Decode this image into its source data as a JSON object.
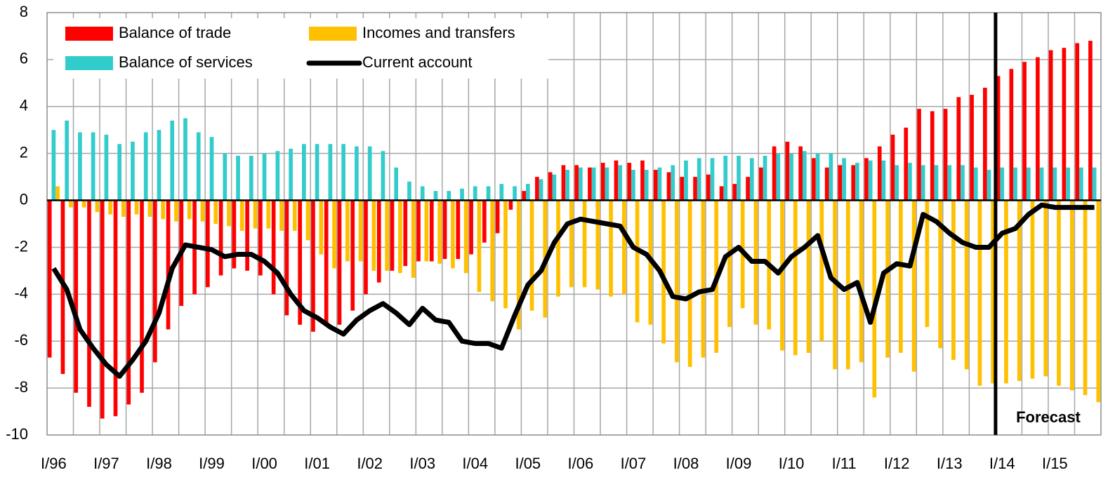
{
  "chart_data": {
    "type": "bar",
    "categories": [
      "I/96",
      null,
      null,
      null,
      "I/97",
      null,
      null,
      null,
      "I/98",
      null,
      null,
      null,
      "I/99",
      null,
      null,
      null,
      "I/00",
      null,
      null,
      null,
      "I/01",
      null,
      null,
      null,
      "I/02",
      null,
      null,
      null,
      "I/03",
      null,
      null,
      null,
      "I/04",
      null,
      null,
      null,
      "I/05",
      null,
      null,
      null,
      "I/06",
      null,
      null,
      null,
      "I/07",
      null,
      null,
      null,
      "I/08",
      null,
      null,
      null,
      "I/09",
      null,
      null,
      null,
      "I/10",
      null,
      null,
      null,
      "I/11",
      null,
      null,
      null,
      "I/12",
      null,
      null,
      null,
      "I/13",
      null,
      null,
      null,
      "I/14",
      null,
      null,
      null,
      "I/15",
      null,
      null,
      null
    ],
    "series": [
      {
        "name": "Balance of trade",
        "type": "bar",
        "color": "#ff0000",
        "values": [
          -6.7,
          -7.4,
          -8.2,
          -8.8,
          -9.3,
          -9.2,
          -8.7,
          -8.2,
          -6.9,
          -5.5,
          -4.5,
          -4.0,
          -3.7,
          -3.2,
          -2.9,
          -3.0,
          -3.2,
          -4.0,
          -4.9,
          -5.3,
          -5.6,
          -5.3,
          -5.3,
          -4.7,
          -4.0,
          -3.5,
          -3.0,
          -2.8,
          -2.6,
          -2.6,
          -2.5,
          -2.5,
          -2.3,
          -1.8,
          -1.4,
          -0.4,
          0.4,
          1.0,
          1.2,
          1.5,
          1.5,
          1.4,
          1.6,
          1.7,
          1.6,
          1.7,
          1.3,
          1.2,
          1.0,
          1.0,
          1.1,
          0.6,
          0.7,
          1.0,
          1.4,
          2.3,
          2.5,
          2.3,
          1.8,
          1.4,
          1.5,
          1.5,
          1.8,
          2.3,
          2.8,
          3.1,
          3.9,
          3.8,
          3.9,
          4.4,
          4.5,
          4.8,
          5.3,
          5.6,
          5.9,
          6.1,
          6.4,
          6.5,
          6.7,
          6.8
        ]
      },
      {
        "name": "Balance of services",
        "type": "bar",
        "color": "#33cccc",
        "values": [
          3.0,
          3.4,
          2.9,
          2.9,
          2.8,
          2.4,
          2.5,
          2.9,
          3.0,
          3.4,
          3.5,
          2.9,
          2.7,
          2.0,
          1.9,
          1.9,
          2.0,
          2.1,
          2.2,
          2.4,
          2.4,
          2.4,
          2.4,
          2.3,
          2.3,
          2.1,
          1.4,
          0.8,
          0.6,
          0.4,
          0.4,
          0.5,
          0.6,
          0.6,
          0.7,
          0.6,
          0.7,
          0.9,
          1.1,
          1.3,
          1.4,
          1.4,
          1.4,
          1.5,
          1.3,
          1.3,
          1.4,
          1.5,
          1.7,
          1.8,
          1.8,
          1.9,
          1.9,
          1.8,
          1.9,
          2.0,
          2.0,
          2.1,
          2.0,
          2.0,
          1.8,
          1.6,
          1.7,
          1.7,
          1.5,
          1.6,
          1.5,
          1.5,
          1.5,
          1.5,
          1.4,
          1.3,
          1.4,
          1.4,
          1.4,
          1.4,
          1.4,
          1.4,
          1.4,
          1.4
        ]
      },
      {
        "name": "Incomes and transfers",
        "type": "bar",
        "color": "#ffc000",
        "values": [
          0.6,
          -0.3,
          -0.3,
          -0.5,
          -0.6,
          -0.7,
          -0.6,
          -0.7,
          -0.8,
          -0.9,
          -0.8,
          -0.9,
          -1.0,
          -1.1,
          -1.3,
          -1.2,
          -1.2,
          -1.3,
          -1.3,
          -1.7,
          -2.3,
          -2.9,
          -2.6,
          -2.6,
          -3.0,
          -3.0,
          -3.1,
          -3.3,
          -2.6,
          -2.7,
          -2.9,
          -3.1,
          -3.9,
          -4.3,
          -4.6,
          -5.5,
          -4.7,
          -5.0,
          -4.1,
          -3.7,
          -3.7,
          -3.8,
          -4.1,
          -4.0,
          -5.2,
          -5.3,
          -6.1,
          -6.9,
          -7.1,
          -6.7,
          -6.5,
          -5.4,
          -4.6,
          -5.3,
          -5.5,
          -6.4,
          -6.6,
          -6.5,
          -6.0,
          -7.2,
          -7.2,
          -6.9,
          -8.4,
          -6.7,
          -6.5,
          -7.3,
          -5.4,
          -6.3,
          -6.8,
          -7.2,
          -7.9,
          -7.8,
          -7.8,
          -7.7,
          -7.6,
          -7.5,
          -7.9,
          -8.1,
          -8.3,
          -8.6
        ]
      },
      {
        "name": "Current account",
        "type": "line",
        "color": "#000000",
        "values": [
          -2.9,
          -3.8,
          -5.5,
          -6.3,
          -7.0,
          -7.5,
          -6.8,
          -6.0,
          -4.8,
          -2.9,
          -1.9,
          -2.0,
          -2.1,
          -2.4,
          -2.3,
          -2.3,
          -2.6,
          -3.1,
          -4.0,
          -4.7,
          -5.0,
          -5.4,
          -5.7,
          -5.1,
          -4.7,
          -4.4,
          -4.8,
          -5.3,
          -4.6,
          -5.1,
          -5.2,
          -6.0,
          -6.1,
          -6.1,
          -6.3,
          -4.9,
          -3.6,
          -3.0,
          -1.8,
          -1.0,
          -0.8,
          -0.9,
          -1.0,
          -1.1,
          -2.0,
          -2.3,
          -3.0,
          -4.1,
          -4.2,
          -3.9,
          -3.8,
          -2.4,
          -2.0,
          -2.6,
          -2.6,
          -3.1,
          -2.4,
          -2.0,
          -1.5,
          -3.3,
          -3.8,
          -3.5,
          -5.2,
          -3.1,
          -2.7,
          -2.8,
          -0.6,
          -0.9,
          -1.4,
          -1.8,
          -2.0,
          -2.0,
          -1.4,
          -1.2,
          -0.6,
          -0.2,
          -0.3,
          -0.3,
          -0.3,
          -0.3
        ]
      }
    ],
    "ylim": [
      -10,
      8
    ],
    "yticks": [
      -10,
      -8,
      -6,
      -4,
      -2,
      0,
      2,
      4,
      6,
      8
    ],
    "grid": true,
    "legend": "upper left",
    "annotation": {
      "text": "Forecast",
      "from": "I/14"
    }
  }
}
